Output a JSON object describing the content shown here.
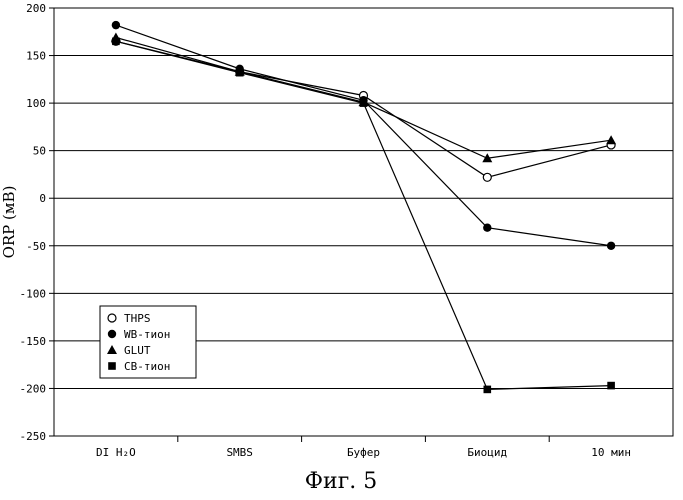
{
  "chart_data": {
    "type": "line",
    "caption": "Фиг. 5",
    "ylabel": "ORP (мВ)",
    "xlabel": "",
    "categories": [
      "DI H₂O",
      "SMBS",
      "Буфер",
      "Биоцид",
      "10 мин"
    ],
    "ylim": [
      -250,
      200
    ],
    "yticks": [
      200,
      150,
      100,
      50,
      0,
      -50,
      -100,
      -150,
      -200,
      -250
    ],
    "grid": true,
    "legend_position": "bottom-left",
    "series": [
      {
        "name": "THPS",
        "marker": "open-circle",
        "values": [
          165,
          133,
          108,
          22,
          56
        ]
      },
      {
        "name": "WB-тион",
        "marker": "filled-circle",
        "values": [
          182,
          136,
          103,
          -31,
          -50
        ]
      },
      {
        "name": "GLUT",
        "marker": "filled-triangle",
        "values": [
          169,
          133,
          101,
          42,
          61
        ]
      },
      {
        "name": "CB-тион",
        "marker": "filled-square",
        "values": [
          165,
          132,
          100,
          -201,
          -197
        ]
      }
    ]
  }
}
